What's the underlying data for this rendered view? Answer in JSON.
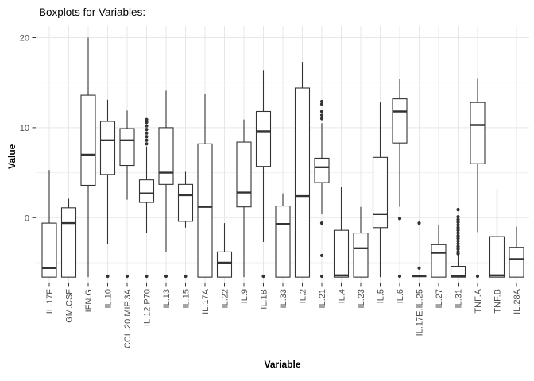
{
  "chart_data": {
    "type": "boxplot",
    "title": "Boxplots for Variables:",
    "xlabel": "Variable",
    "ylabel": "Value",
    "ylim": [
      -7.3,
      21.3
    ],
    "yticks": [
      {
        "value": 0,
        "label": "0"
      },
      {
        "value": 10,
        "label": "10"
      },
      {
        "value": 20,
        "label": "20"
      }
    ],
    "yminor": [
      -5,
      5,
      15
    ],
    "grid": "on",
    "categories": [
      "IL.17F",
      "GM.CSF",
      "IFN.G",
      "IL.10",
      "CCL.20.MIP.3A",
      "IL.12.P70",
      "IL.13",
      "IL.15",
      "IL.17A",
      "IL.22",
      "IL.9",
      "IL.1B",
      "IL.33",
      "IL.2",
      "IL.21",
      "IL.4",
      "IL.23",
      "IL.5",
      "IL.6",
      "IL.17E.IL.25",
      "IL.27",
      "IL.31",
      "TNF.A",
      "TNF.B",
      "IL.28A"
    ],
    "boxes": [
      {
        "whisker_lo": -6.6,
        "q1": -6.6,
        "median": -5.6,
        "q3": -0.6,
        "whisker_hi": 5.3,
        "outliers": []
      },
      {
        "whisker_lo": -6.6,
        "q1": -6.6,
        "median": -0.6,
        "q3": 1.1,
        "whisker_hi": 2.1,
        "outliers": []
      },
      {
        "whisker_lo": -6.6,
        "q1": 3.6,
        "median": 7.0,
        "q3": 13.6,
        "whisker_hi": 20.0,
        "outliers": []
      },
      {
        "whisker_lo": -2.9,
        "q1": 4.8,
        "median": 8.6,
        "q3": 10.7,
        "whisker_hi": 13.1,
        "outliers": [
          -6.5
        ]
      },
      {
        "whisker_lo": 2.0,
        "q1": 5.8,
        "median": 8.6,
        "q3": 9.9,
        "whisker_hi": 11.9,
        "outliers": [
          -6.5
        ]
      },
      {
        "whisker_lo": -1.7,
        "q1": 1.7,
        "median": 2.7,
        "q3": 4.2,
        "whisker_hi": 7.9,
        "outliers": [
          10.9,
          10.6,
          10.2,
          9.8,
          9.4,
          9.0,
          8.6,
          8.2,
          -6.5
        ]
      },
      {
        "whisker_lo": -3.8,
        "q1": 3.7,
        "median": 5.0,
        "q3": 10.0,
        "whisker_hi": 14.1,
        "outliers": [
          -6.5
        ]
      },
      {
        "whisker_lo": -1.1,
        "q1": -0.4,
        "median": 2.5,
        "q3": 3.7,
        "whisker_hi": 5.1,
        "outliers": [
          -6.5
        ]
      },
      {
        "whisker_lo": -6.6,
        "q1": -6.6,
        "median": 1.2,
        "q3": 8.2,
        "whisker_hi": 13.7,
        "outliers": []
      },
      {
        "whisker_lo": -6.6,
        "q1": -6.6,
        "median": -5.0,
        "q3": -3.8,
        "whisker_hi": -0.6,
        "outliers": []
      },
      {
        "whisker_lo": -6.6,
        "q1": 1.2,
        "median": 2.8,
        "q3": 8.4,
        "whisker_hi": 10.9,
        "outliers": []
      },
      {
        "whisker_lo": -2.7,
        "q1": 5.7,
        "median": 9.6,
        "q3": 11.8,
        "whisker_hi": 16.4,
        "outliers": [
          -6.5
        ]
      },
      {
        "whisker_lo": -6.6,
        "q1": -6.6,
        "median": -0.7,
        "q3": 1.3,
        "whisker_hi": 2.7,
        "outliers": []
      },
      {
        "whisker_lo": -6.6,
        "q1": -6.6,
        "median": 2.4,
        "q3": 14.4,
        "whisker_hi": 17.3,
        "outliers": []
      },
      {
        "whisker_lo": 0.4,
        "q1": 3.9,
        "median": 5.6,
        "q3": 6.6,
        "whisker_hi": 10.5,
        "outliers": [
          12.9,
          12.6,
          11.8,
          11.4,
          11.0,
          -0.6,
          -4.2,
          -6.5
        ]
      },
      {
        "whisker_lo": -6.6,
        "q1": -6.6,
        "median": -6.4,
        "q3": -1.4,
        "whisker_hi": 3.4,
        "outliers": []
      },
      {
        "whisker_lo": -6.6,
        "q1": -6.6,
        "median": -3.4,
        "q3": -1.7,
        "whisker_hi": 1.2,
        "outliers": []
      },
      {
        "whisker_lo": -6.6,
        "q1": -1.1,
        "median": 0.4,
        "q3": 6.7,
        "whisker_hi": 12.8,
        "outliers": []
      },
      {
        "whisker_lo": 1.2,
        "q1": 8.3,
        "median": 11.8,
        "q3": 13.2,
        "whisker_hi": 15.4,
        "outliers": [
          -0.1,
          -6.5
        ]
      },
      {
        "whisker_lo": -6.5,
        "q1": -6.5,
        "median": -6.5,
        "q3": -6.5,
        "whisker_hi": -6.5,
        "outliers": [
          -0.6,
          -5.6
        ]
      },
      {
        "whisker_lo": -6.6,
        "q1": -6.6,
        "median": -3.9,
        "q3": -3.0,
        "whisker_hi": -0.8,
        "outliers": []
      },
      {
        "whisker_lo": -6.6,
        "q1": -6.6,
        "median": -6.5,
        "q3": -5.4,
        "whisker_hi": -4.1,
        "outliers": [
          0.9,
          0.1,
          -0.2,
          -0.5,
          -0.8,
          -1.1,
          -1.4,
          -1.7,
          -2.0,
          -2.3,
          -2.6,
          -2.9,
          -3.2,
          -3.5,
          -3.8,
          -4.0
        ]
      },
      {
        "whisker_lo": -1.6,
        "q1": 6.0,
        "median": 10.3,
        "q3": 12.8,
        "whisker_hi": 15.5,
        "outliers": [
          -6.5
        ]
      },
      {
        "whisker_lo": -6.6,
        "q1": -6.6,
        "median": -6.4,
        "q3": -2.1,
        "whisker_hi": 3.2,
        "outliers": []
      },
      {
        "whisker_lo": -6.6,
        "q1": -6.6,
        "median": -4.6,
        "q3": -3.3,
        "whisker_hi": -1.0,
        "outliers": []
      }
    ],
    "colors": {
      "box_stroke": "#333333",
      "box_fill": "#ffffff",
      "outlier": "#333333",
      "grid_major": "#e7e7e7",
      "grid_minor": "#f1f1f1",
      "tick_mark": "#333333",
      "tick_label": "#4d4d4d",
      "title": "#000000"
    }
  }
}
